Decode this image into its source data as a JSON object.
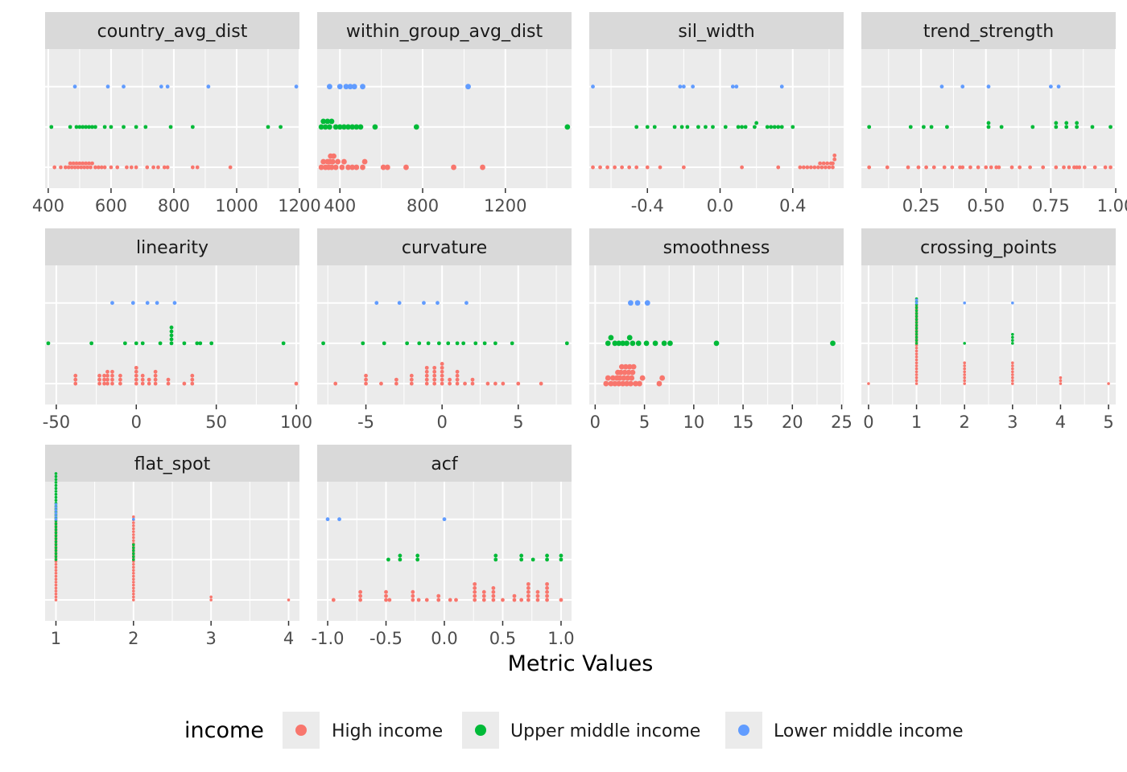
{
  "chart_data": {
    "type": "scatter",
    "xlabel": "Metric Values",
    "legend": {
      "title": "income",
      "position": "bottom",
      "entries": [
        {
          "label": "High income",
          "color": "#F8766D"
        },
        {
          "label": "Upper middle income",
          "color": "#00BA38"
        },
        {
          "label": "Lower middle income",
          "color": "#619CFF"
        }
      ]
    },
    "panels": [
      {
        "title": "country_avg_dist",
        "xlim": [
          390,
          1200
        ],
        "ticks": [
          400,
          600,
          800,
          1000,
          1200
        ],
        "tick_labels": [
          "400",
          "600",
          "800",
          "1000",
          "1200"
        ],
        "series": {
          "High income": [
            420,
            440,
            455,
            465,
            470,
            475,
            480,
            485,
            490,
            495,
            500,
            505,
            510,
            515,
            520,
            525,
            530,
            535,
            540,
            550,
            560,
            570,
            580,
            600,
            620,
            650,
            665,
            680,
            715,
            735,
            750,
            770,
            780,
            860,
            875,
            980
          ],
          "Upper middle income": [
            410,
            470,
            490,
            500,
            510,
            520,
            530,
            540,
            550,
            580,
            600,
            640,
            680,
            710,
            790,
            860,
            1100,
            1140
          ],
          "Lower middle income": [
            485,
            590,
            640,
            760,
            780,
            910,
            1190
          ]
        }
      },
      {
        "title": "within_group_avg_dist",
        "xlim": [
          290,
          1520
        ],
        "ticks": [
          400,
          800,
          1200
        ],
        "tick_labels": [
          "400",
          "800",
          "1200"
        ],
        "series": {
          "High income": [
            310,
            320,
            330,
            340,
            345,
            350,
            355,
            360,
            365,
            370,
            380,
            390,
            410,
            420,
            440,
            460,
            480,
            510,
            520,
            610,
            630,
            720,
            950,
            1090
          ],
          "Upper middle income": [
            310,
            320,
            330,
            340,
            350,
            360,
            380,
            400,
            420,
            440,
            460,
            480,
            500,
            570,
            770,
            1500
          ],
          "Lower middle income": [
            350,
            400,
            430,
            450,
            470,
            510,
            1020
          ]
        }
      },
      {
        "title": "sil_width",
        "xlim": [
          -0.72,
          0.68
        ],
        "ticks": [
          -0.4,
          0.0,
          0.4
        ],
        "tick_labels": [
          "-0.4",
          "0.0",
          "0.4"
        ],
        "series": {
          "High income": [
            -0.7,
            -0.66,
            -0.62,
            -0.58,
            -0.54,
            -0.5,
            -0.46,
            -0.4,
            -0.33,
            -0.2,
            0.12,
            0.32,
            0.44,
            0.46,
            0.48,
            0.5,
            0.52,
            0.54,
            0.55,
            0.56,
            0.57,
            0.58,
            0.59,
            0.6,
            0.61,
            0.62,
            0.62,
            0.63,
            0.63
          ],
          "Upper middle income": [
            -0.46,
            -0.4,
            -0.36,
            -0.25,
            -0.21,
            -0.18,
            -0.12,
            -0.08,
            -0.04,
            0.03,
            0.1,
            0.12,
            0.14,
            0.19,
            0.2,
            0.26,
            0.28,
            0.3,
            0.32,
            0.34,
            0.4
          ],
          "Lower middle income": [
            -0.7,
            -0.22,
            -0.2,
            -0.15,
            0.07,
            0.09,
            0.34
          ]
        }
      },
      {
        "title": "trend_strength",
        "xlim": [
          0.02,
          1.0
        ],
        "ticks": [
          0.25,
          0.5,
          0.75,
          1.0
        ],
        "tick_labels": [
          "0.25",
          "0.50",
          "0.75",
          "1.00"
        ],
        "series": {
          "High income": [
            0.05,
            0.12,
            0.2,
            0.24,
            0.27,
            0.3,
            0.34,
            0.37,
            0.4,
            0.41,
            0.44,
            0.47,
            0.5,
            0.52,
            0.54,
            0.55,
            0.6,
            0.63,
            0.67,
            0.72,
            0.77,
            0.8,
            0.82,
            0.84,
            0.85,
            0.86,
            0.88,
            0.92,
            0.96,
            0.98
          ],
          "Upper middle income": [
            0.05,
            0.21,
            0.26,
            0.29,
            0.35,
            0.51,
            0.51,
            0.56,
            0.68,
            0.77,
            0.77,
            0.81,
            0.81,
            0.85,
            0.85,
            0.91,
            0.98
          ],
          "Lower middle income": [
            0.33,
            0.41,
            0.51,
            0.75,
            0.78
          ]
        }
      },
      {
        "title": "linearity",
        "xlim": [
          -57,
          102
        ],
        "ticks": [
          -50,
          0,
          50,
          100
        ],
        "tick_labels": [
          "-50",
          "0",
          "50",
          "100"
        ],
        "series": {
          "High income": [
            -38,
            -38,
            -38,
            -23,
            -23,
            -23,
            -20,
            -20,
            -20,
            -18,
            -18,
            -18,
            -18,
            -15,
            -15,
            -15,
            -15,
            -10,
            -10,
            -10,
            0,
            0,
            0,
            0,
            0,
            4,
            4,
            4,
            8,
            8,
            12,
            12,
            12,
            12,
            20,
            20,
            30,
            35,
            35,
            35,
            100
          ],
          "Upper middle income": [
            -55,
            -28,
            -7,
            0,
            4,
            15,
            22,
            22,
            22,
            22,
            22,
            30,
            38,
            40,
            47,
            92
          ],
          "Lower middle income": [
            -15,
            -2,
            7,
            13,
            24
          ]
        }
      },
      {
        "title": "curvature",
        "xlim": [
          -8.2,
          8.5
        ],
        "ticks": [
          -5,
          0,
          5
        ],
        "tick_labels": [
          "-5",
          "0",
          "5"
        ],
        "series": {
          "High income": [
            -7,
            -5,
            -5,
            -5,
            -4,
            -3,
            -3,
            -2,
            -2,
            -2,
            -1,
            -1,
            -1,
            -1,
            -1,
            -0.5,
            -0.5,
            -0.5,
            -0.5,
            -0.5,
            0,
            0,
            0,
            0,
            0,
            0,
            0.5,
            0.5,
            1,
            1,
            1,
            1,
            1.5,
            2,
            2,
            3,
            3.5,
            4,
            5,
            6.5
          ],
          "Upper middle income": [
            -7.8,
            -5.2,
            -3.8,
            -2.3,
            -1.5,
            -0.9,
            -0.2,
            0.4,
            1,
            1.4,
            2.2,
            2.8,
            3.5,
            4.6,
            8.2
          ],
          "Lower middle income": [
            -4.3,
            -2.8,
            -1.2,
            -0.3,
            1.6
          ]
        }
      },
      {
        "title": "smoothness",
        "xlim": [
          -0.6,
          25.2
        ],
        "ticks": [
          0,
          5,
          10,
          15,
          20,
          25
        ],
        "tick_labels": [
          "0",
          "5",
          "10",
          "15",
          "20",
          "25"
        ],
        "series": {
          "High income": [
            1.1,
            1.3,
            1.6,
            1.8,
            2.0,
            2.2,
            2.3,
            2.4,
            2.5,
            2.6,
            2.7,
            2.8,
            2.9,
            3.0,
            3.1,
            3.2,
            3.3,
            3.4,
            3.5,
            3.6,
            3.7,
            3.8,
            3.9,
            4.1,
            4.5,
            4.8,
            6.5,
            6.8
          ],
          "Upper middle income": [
            1.3,
            1.6,
            2.0,
            2.4,
            2.8,
            3.2,
            3.5,
            3.8,
            4.4,
            5.2,
            6.1,
            7.0,
            7.6,
            12.3,
            24.1
          ],
          "Lower middle income": [
            3.6,
            4.3,
            5.3
          ]
        }
      },
      {
        "title": "crossing_points",
        "xlim": [
          -0.15,
          5.15
        ],
        "ticks": [
          0,
          1,
          2,
          3,
          4,
          5
        ],
        "tick_labels": [
          "0",
          "1",
          "2",
          "3",
          "4",
          "5"
        ],
        "series": {
          "High income": [
            0,
            1,
            1,
            1,
            1,
            1,
            1,
            1,
            1,
            1,
            1,
            1,
            1,
            1,
            1,
            1,
            1,
            1,
            1,
            1,
            1,
            1,
            1,
            1,
            1,
            1,
            1,
            1,
            2,
            2,
            2,
            2,
            2,
            2,
            2,
            2,
            3,
            3,
            3,
            3,
            3,
            3,
            3,
            3,
            4,
            4,
            4,
            5
          ],
          "Upper middle income": [
            1,
            1,
            1,
            1,
            1,
            1,
            1,
            1,
            1,
            1,
            1,
            1,
            1,
            1,
            1,
            1,
            2,
            3,
            3,
            3,
            3
          ],
          "Lower middle income": [
            1,
            1,
            2,
            3
          ]
        }
      },
      {
        "title": "flat_spot",
        "xlim": [
          0.86,
          4.14
        ],
        "ticks": [
          1,
          2,
          3,
          4
        ],
        "tick_labels": [
          "1",
          "2",
          "3",
          "4"
        ],
        "series": {
          "High income": [
            1,
            1,
            1,
            1,
            1,
            1,
            1,
            1,
            1,
            1,
            1,
            1,
            1,
            1,
            1,
            1,
            1,
            1,
            1,
            1,
            1,
            1,
            1,
            1,
            1,
            1,
            1,
            1,
            1,
            1,
            1,
            1,
            2,
            2,
            2,
            2,
            2,
            2,
            2,
            2,
            2,
            2,
            2,
            2,
            2,
            2,
            2,
            2,
            2,
            2,
            2,
            2,
            2,
            2,
            2,
            2,
            2,
            2,
            2,
            2,
            2,
            3,
            3,
            4
          ],
          "Upper middle income": [
            1,
            1,
            1,
            1,
            1,
            1,
            1,
            1,
            1,
            1,
            1,
            1,
            1,
            1,
            1,
            1,
            1,
            1,
            1,
            1,
            1,
            1,
            1,
            1,
            1,
            1,
            1,
            1,
            1,
            1,
            2,
            2,
            2,
            2,
            2,
            2
          ],
          "Lower middle income": [
            1,
            1,
            1,
            1,
            1,
            1,
            2
          ]
        }
      },
      {
        "title": "acf",
        "xlim": [
          -1.09,
          1.09
        ],
        "ticks": [
          -1.0,
          -0.5,
          0.0,
          0.5,
          1.0
        ],
        "tick_labels": [
          "-1.0",
          "-0.5",
          "0.0",
          "0.5",
          "1.0"
        ],
        "series": {
          "High income": [
            -0.95,
            -0.72,
            -0.72,
            -0.72,
            -0.5,
            -0.5,
            -0.5,
            -0.47,
            -0.27,
            -0.27,
            -0.27,
            -0.22,
            -0.15,
            -0.05,
            -0.05,
            0.05,
            0.1,
            0.26,
            0.26,
            0.26,
            0.26,
            0.26,
            0.34,
            0.34,
            0.34,
            0.42,
            0.42,
            0.42,
            0.42,
            0.5,
            0.6,
            0.6,
            0.66,
            0.72,
            0.72,
            0.72,
            0.72,
            0.72,
            0.8,
            0.8,
            0.8,
            0.88,
            0.88,
            0.88,
            0.88,
            0.88,
            1.0
          ],
          "Upper middle income": [
            -0.48,
            -0.38,
            -0.38,
            -0.23,
            -0.23,
            0.44,
            0.44,
            0.66,
            0.66,
            0.76,
            0.88,
            0.88,
            1.0,
            1.0
          ],
          "Lower middle income": [
            -1.0,
            -0.9,
            0.0
          ]
        }
      }
    ]
  }
}
